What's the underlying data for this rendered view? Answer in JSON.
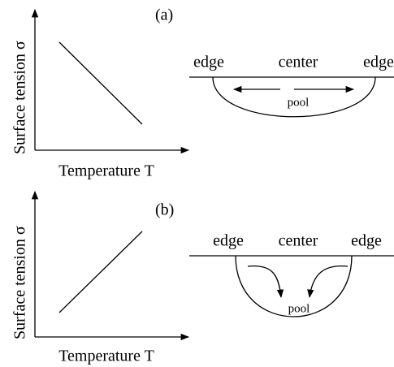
{
  "panels": [
    {
      "tag": "(a)",
      "y_axis_label": "Surface tension  σ",
      "x_axis_label": "Temperature  T",
      "edge_left": "edge",
      "center": "center",
      "edge_right": "edge",
      "pool": "pool"
    },
    {
      "tag": "(b)",
      "y_axis_label": "Surface tension  σ",
      "x_axis_label": "Temperature  T",
      "edge_left": "edge",
      "center": "center",
      "edge_right": "edge",
      "pool": "pool"
    }
  ]
}
